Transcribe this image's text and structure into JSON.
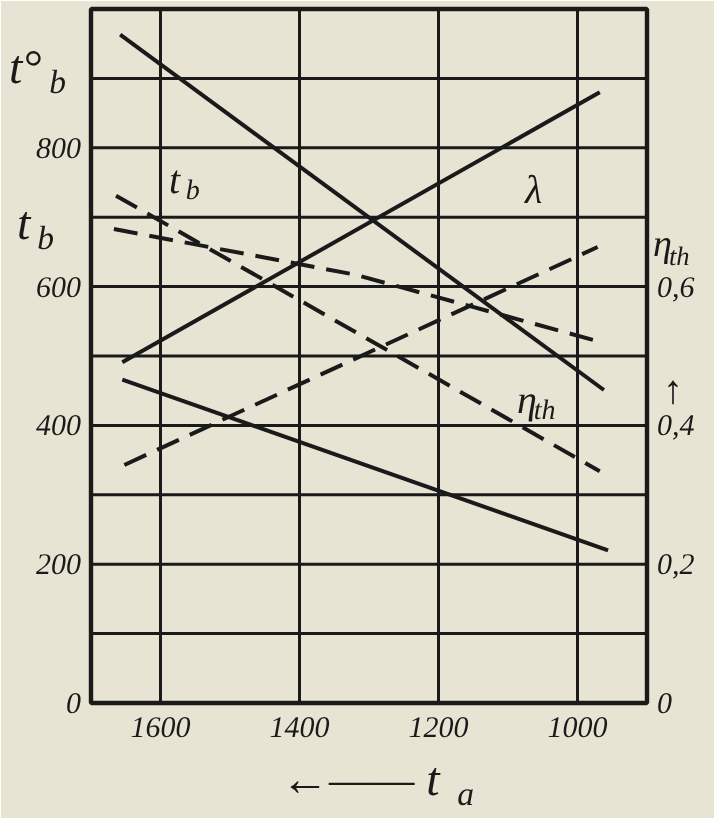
{
  "chart_data": {
    "type": "line",
    "xlabel": "←—— t$_{a}$",
    "ylabel": "t°$_{b}$",
    "y2label": "η$_{th}$",
    "xlim": [
      1700,
      900
    ],
    "ylim": [
      0,
      1000
    ],
    "y2lim": [
      0,
      1.0
    ],
    "xticks": [
      1600,
      1400,
      1200,
      1000
    ],
    "yticks": [
      0,
      {
        "value": 100,
        "label": null
      },
      200,
      {
        "value": 300,
        "label": null
      },
      400,
      {
        "value": 500,
        "label": null
      },
      600,
      {
        "value": 700,
        "label": null
      },
      800,
      {
        "value": 900,
        "label": null
      }
    ],
    "y2ticks": [
      "0",
      {
        "value": 0.2,
        "label": "0,2"
      },
      {
        "value": 0.4,
        "label": "0,4"
      },
      {
        "value": 0.6,
        "label": "0,6"
      }
    ],
    "grid": true,
    "series": [
      {
        "color": "#1a1a1a",
        "line_style": "solid",
        "x": [
          1658,
          962
        ],
        "values": [
          963,
          451
        ]
      },
      {
        "color": "#1a1a1a",
        "line_style": "solid",
        "x": [
          1655,
          968
        ],
        "values": [
          491,
          880
        ]
      },
      {
        "color": "#1a1a1a",
        "line_style": "dashed",
        "x": [
          1664,
          968
        ],
        "values": [
          731,
          334
        ]
      },
      {
        "color": "#1a1a1a",
        "line_style": "dashed",
        "x": [
          1667,
          1319,
          977
        ],
        "values": [
          683,
          617,
          523
        ]
      },
      {
        "color": "#1a1a1a",
        "line_style": "dashed",
        "axis": "y2",
        "x": [
          1652,
          971
        ],
        "values": [
          0.343,
          0.657
        ]
      },
      {
        "color": "#1a1a1a",
        "line_style": "solid",
        "axis": "y2",
        "x": [
          1655,
          956
        ],
        "values": [
          0.466,
          0.22
        ]
      }
    ],
    "annotations": [
      "t$_{b}$",
      "t$_{b}$",
      "λ",
      "η$_{th}$",
      "↑"
    ]
  }
}
